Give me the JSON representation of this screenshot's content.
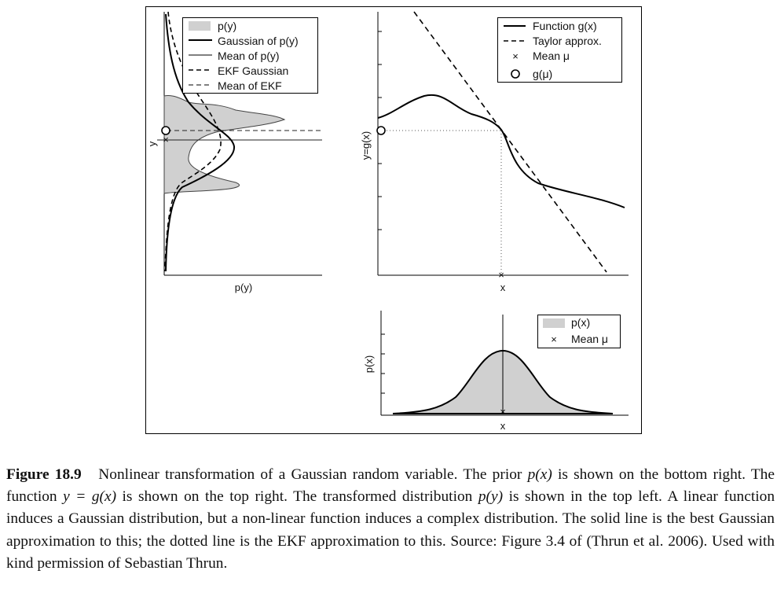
{
  "figure": {
    "panels": {
      "py": {
        "xlabel": "p(y)",
        "ylabel": "y",
        "legend": [
          "p(y)",
          "Gaussian of p(y)",
          "Mean of p(y)",
          "EKF Gaussian",
          "Mean of EKF"
        ]
      },
      "gx": {
        "xlabel": "x",
        "ylabel": "y=g(x)",
        "legend": [
          "Function g(x)",
          "Taylor approx.",
          "Mean μ",
          "g(μ)"
        ]
      },
      "px": {
        "xlabel": "x",
        "ylabel": "p(x)",
        "legend": [
          "p(x)",
          "Mean μ"
        ]
      }
    }
  },
  "caption": {
    "label": "Figure 18.9",
    "seg1": "Nonlinear transformation of a Gaussian random variable. The prior ",
    "m1": "p(x)",
    "seg2": " is shown on the bottom right. The function ",
    "m2": "y = g(x)",
    "seg3": " is shown on the top right. The transformed distribution ",
    "m3": "p(y)",
    "seg4": " is shown in the top left. A linear function induces a Gaussian distribution, but a non-linear function induces a complex distribution. The solid line is the best Gaussian approximation to this; the dotted line is the EKF approximation to this. Source: Figure 3.4 of (Thrun et al. 2006). Used with kind permission of Sebastian Thrun."
  },
  "chart_data": [
    {
      "type": "area",
      "panel": "py",
      "orientation": "vertical-density",
      "series": [
        {
          "name": "p(y)",
          "style": "filled-gray",
          "y": [
            0.0,
            0.1,
            0.2,
            0.3,
            0.4,
            0.47,
            0.52,
            0.57,
            0.62,
            0.67,
            0.72,
            0.77,
            0.82,
            0.87,
            0.92,
            1.0
          ],
          "density": [
            0.0,
            0.0,
            0.02,
            0.1,
            0.35,
            0.62,
            0.35,
            0.18,
            0.15,
            0.22,
            0.4,
            0.95,
            0.4,
            0.1,
            0.01,
            0.0
          ]
        },
        {
          "name": "Gaussian of p(y)",
          "y": [
            0.0,
            0.1,
            0.2,
            0.3,
            0.4,
            0.5,
            0.55,
            0.6,
            0.65,
            0.7,
            0.8,
            0.9,
            1.0
          ],
          "density": [
            0.0,
            0.0,
            0.02,
            0.08,
            0.25,
            0.48,
            0.55,
            0.5,
            0.38,
            0.24,
            0.08,
            0.02,
            0.0
          ]
        },
        {
          "name": "EKF Gaussian",
          "y": [
            0.0,
            0.15,
            0.3,
            0.4,
            0.5,
            0.56,
            0.62,
            0.7,
            0.8,
            0.9,
            1.0
          ],
          "density": [
            0.0,
            0.01,
            0.05,
            0.2,
            0.42,
            0.46,
            0.4,
            0.22,
            0.08,
            0.02,
            0.0
          ]
        }
      ],
      "mean_py": 0.53,
      "mean_ekf": 0.56
    },
    {
      "type": "line",
      "panel": "gx",
      "series": [
        {
          "name": "Function g(x)",
          "x": [
            0.0,
            0.08,
            0.15,
            0.22,
            0.3,
            0.4,
            0.47,
            0.52,
            0.58,
            0.66,
            0.74,
            0.82,
            0.9,
            1.0
          ],
          "y": [
            0.62,
            0.68,
            0.72,
            0.7,
            0.64,
            0.6,
            0.56,
            0.48,
            0.4,
            0.37,
            0.35,
            0.32,
            0.28,
            0.26
          ]
        },
        {
          "name": "Taylor approx.",
          "x": [
            0.15,
            0.95
          ],
          "y": [
            1.0,
            -0.05
          ]
        }
      ],
      "mean_x": 0.49,
      "g_mu": 0.56
    },
    {
      "type": "area",
      "panel": "px",
      "series": [
        {
          "name": "p(x)",
          "style": "filled-gray",
          "x": [
            0.05,
            0.2,
            0.3,
            0.38,
            0.44,
            0.49,
            0.54,
            0.6,
            0.68,
            0.78,
            0.93
          ],
          "y": [
            0.0,
            0.01,
            0.08,
            0.35,
            0.75,
            0.95,
            0.75,
            0.35,
            0.08,
            0.01,
            0.0
          ]
        }
      ],
      "mean_x": 0.49
    }
  ]
}
